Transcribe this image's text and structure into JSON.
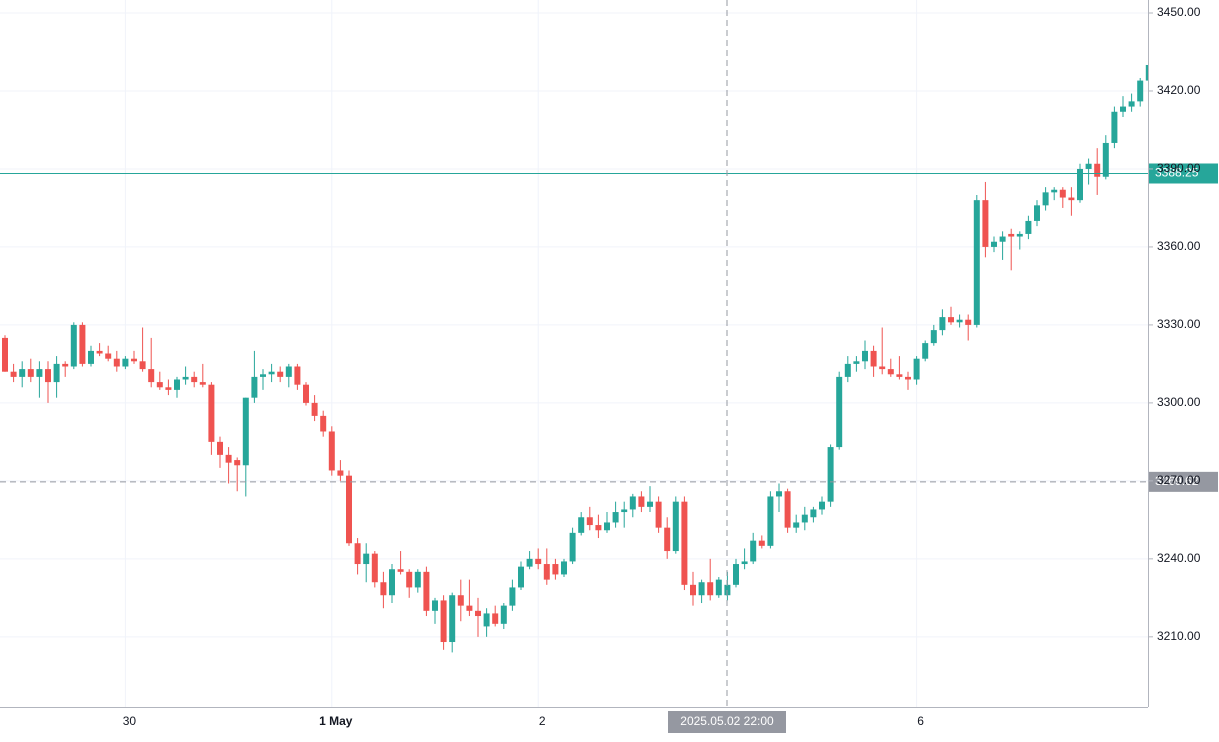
{
  "chart_data": {
    "type": "candlestick",
    "categories": [
      null,
      null,
      null,
      null,
      null,
      null,
      null,
      null,
      null,
      null,
      null,
      null,
      null,
      null,
      "30",
      null,
      null,
      null,
      null,
      null,
      null,
      null,
      null,
      null,
      null,
      null,
      null,
      null,
      null,
      null,
      null,
      null,
      null,
      null,
      null,
      null,
      null,
      null,
      "1 May",
      null,
      null,
      null,
      null,
      null,
      null,
      null,
      null,
      null,
      null,
      null,
      null,
      null,
      null,
      null,
      null,
      null,
      null,
      null,
      null,
      null,
      null,
      null,
      "2",
      null,
      null,
      null,
      null,
      null,
      null,
      null,
      null,
      null,
      null,
      null,
      null,
      null,
      null,
      null,
      null,
      null,
      null,
      null,
      null,
      null,
      null,
      null,
      null,
      null,
      null,
      null,
      null,
      null,
      null,
      null,
      null,
      null,
      null,
      null,
      null,
      null,
      null,
      null,
      null,
      null,
      null,
      null,
      "6",
      null,
      null,
      null,
      null,
      null,
      null,
      null,
      null,
      null,
      null,
      null,
      null,
      null,
      null,
      null,
      null,
      null,
      null,
      null,
      null,
      null,
      null,
      null
    ],
    "ohlc": [
      [
        3325,
        3326,
        3312,
        3312
      ],
      [
        3312,
        3315,
        3308,
        3310
      ],
      [
        3310,
        3316,
        3306,
        3313
      ],
      [
        3313,
        3317,
        3308,
        3310
      ],
      [
        3310,
        3316,
        3302,
        3313
      ],
      [
        3313,
        3316,
        3300,
        3308
      ],
      [
        3308,
        3318,
        3302,
        3315
      ],
      [
        3315,
        3316,
        3310,
        3314
      ],
      [
        3314,
        3331,
        3313,
        3330
      ],
      [
        3330,
        3331,
        3314,
        3315
      ],
      [
        3315,
        3322,
        3314,
        3320
      ],
      [
        3320,
        3323,
        3318,
        3319
      ],
      [
        3319,
        3322,
        3316,
        3317
      ],
      [
        3317,
        3320,
        3312,
        3314
      ],
      [
        3314,
        3318,
        3313,
        3317
      ],
      [
        3317,
        3320,
        3315,
        3316
      ],
      [
        3316,
        3329,
        3312,
        3313
      ],
      [
        3313,
        3325,
        3306,
        3308
      ],
      [
        3308,
        3312,
        3305,
        3306
      ],
      [
        3306,
        3309,
        3303,
        3305
      ],
      [
        3305,
        3310,
        3302,
        3309
      ],
      [
        3309,
        3314,
        3307,
        3310
      ],
      [
        3310,
        3312,
        3306,
        3308
      ],
      [
        3308,
        3315,
        3306,
        3307
      ],
      [
        3307,
        3308,
        3280,
        3285
      ],
      [
        3285,
        3287,
        3275,
        3280
      ],
      [
        3280,
        3283,
        3269,
        3277
      ],
      [
        3278,
        3279,
        3266,
        3276
      ],
      [
        3276,
        3302,
        3264,
        3302
      ],
      [
        3302,
        3320,
        3300,
        3310
      ],
      [
        3310,
        3313,
        3305,
        3311
      ],
      [
        3311,
        3315,
        3308,
        3312
      ],
      [
        3312,
        3314,
        3308,
        3310
      ],
      [
        3310,
        3315,
        3306,
        3314
      ],
      [
        3314,
        3315,
        3305,
        3307
      ],
      [
        3307,
        3308,
        3299,
        3300
      ],
      [
        3300,
        3303,
        3293,
        3295
      ],
      [
        3295,
        3297,
        3287,
        3289
      ],
      [
        3289,
        3291,
        3272,
        3274
      ],
      [
        3274,
        3278,
        3270,
        3272
      ],
      [
        3272,
        3274,
        3245,
        3246
      ],
      [
        3246,
        3248,
        3234,
        3238
      ],
      [
        3238,
        3246,
        3231,
        3242
      ],
      [
        3242,
        3243,
        3229,
        3231
      ],
      [
        3231,
        3235,
        3221,
        3226
      ],
      [
        3226,
        3238,
        3223,
        3236
      ],
      [
        3236,
        3243,
        3234,
        3235
      ],
      [
        3235,
        3236,
        3225,
        3229
      ],
      [
        3229,
        3236,
        3227,
        3235
      ],
      [
        3235,
        3237,
        3218,
        3220
      ],
      [
        3220,
        3225,
        3215,
        3224
      ],
      [
        3224,
        3226,
        3205,
        3208
      ],
      [
        3208,
        3227,
        3204,
        3226
      ],
      [
        3226,
        3232,
        3216,
        3222
      ],
      [
        3222,
        3232,
        3218,
        3220
      ],
      [
        3220,
        3225,
        3210,
        3218
      ],
      [
        3214,
        3221,
        3210,
        3219
      ],
      [
        3219,
        3222,
        3214,
        3215
      ],
      [
        3215,
        3223,
        3213,
        3222
      ],
      [
        3222,
        3232,
        3220,
        3229
      ],
      [
        3229,
        3239,
        3228,
        3237
      ],
      [
        3237,
        3243,
        3236,
        3240
      ],
      [
        3240,
        3244,
        3236,
        3238
      ],
      [
        3238,
        3244,
        3230,
        3232
      ],
      [
        3238,
        3240,
        3232,
        3234
      ],
      [
        3234,
        3240,
        3233,
        3239
      ],
      [
        3239,
        3252,
        3238,
        3250
      ],
      [
        3250,
        3258,
        3249,
        3256
      ],
      [
        3256,
        3260,
        3251,
        3253
      ],
      [
        3253,
        3257,
        3248,
        3251
      ],
      [
        3251,
        3258,
        3250,
        3254
      ],
      [
        3254,
        3262,
        3252,
        3258
      ],
      [
        3258,
        3262,
        3252,
        3259
      ],
      [
        3259,
        3265,
        3256,
        3264
      ],
      [
        3264,
        3266,
        3258,
        3260
      ],
      [
        3260,
        3268,
        3258,
        3262
      ],
      [
        3262,
        3264,
        3250,
        3252
      ],
      [
        3252,
        3256,
        3240,
        3243
      ],
      [
        3243,
        3264,
        3242,
        3262
      ],
      [
        3262,
        3264,
        3228,
        3230
      ],
      [
        3230,
        3235,
        3222,
        3226
      ],
      [
        3226,
        3232,
        3223,
        3231
      ],
      [
        3231,
        3240,
        3224,
        3226
      ],
      [
        3226,
        3233,
        3225,
        3232
      ],
      [
        3226,
        3235,
        3224,
        3230
      ],
      [
        3230,
        3240,
        3229,
        3238
      ],
      [
        3238,
        3244,
        3236,
        3239
      ],
      [
        3239,
        3250,
        3238,
        3247
      ],
      [
        3247,
        3249,
        3244,
        3245
      ],
      [
        3245,
        3266,
        3244,
        3264
      ],
      [
        3264,
        3269,
        3258,
        3266
      ],
      [
        3266,
        3267,
        3250,
        3252
      ],
      [
        3252,
        3257,
        3250,
        3254
      ],
      [
        3254,
        3260,
        3251,
        3257
      ],
      [
        3256,
        3260,
        3254,
        3259
      ],
      [
        3259,
        3264,
        3257,
        3262
      ],
      [
        3262,
        3284,
        3260,
        3283
      ],
      [
        3283,
        3312,
        3282,
        3310
      ],
      [
        3310,
        3318,
        3308,
        3315
      ],
      [
        3315,
        3318,
        3312,
        3316
      ],
      [
        3316,
        3324,
        3313,
        3320
      ],
      [
        3320,
        3322,
        3310,
        3314
      ],
      [
        3314,
        3329,
        3311,
        3313
      ],
      [
        3313,
        3317,
        3310,
        3311
      ],
      [
        3311,
        3318,
        3309,
        3310
      ],
      [
        3310,
        3312,
        3305,
        3309
      ],
      [
        3309,
        3318,
        3307,
        3317
      ],
      [
        3317,
        3324,
        3316,
        3323
      ],
      [
        3323,
        3330,
        3322,
        3328
      ],
      [
        3328,
        3336,
        3326,
        3333
      ],
      [
        3333,
        3337,
        3330,
        3331
      ],
      [
        3331,
        3334,
        3329,
        3332
      ],
      [
        3332,
        3334,
        3324,
        3330
      ],
      [
        3330,
        3380,
        3329,
        3378
      ],
      [
        3378,
        3385,
        3356,
        3360
      ],
      [
        3360,
        3364,
        3358,
        3362
      ],
      [
        3362,
        3366,
        3355,
        3364
      ],
      [
        3365,
        3367,
        3351,
        3364
      ],
      [
        3364,
        3366,
        3359,
        3365
      ],
      [
        3365,
        3372,
        3363,
        3370
      ],
      [
        3370,
        3378,
        3368,
        3376
      ],
      [
        3376,
        3383,
        3374,
        3381
      ],
      [
        3381,
        3383,
        3378,
        3382
      ],
      [
        3382,
        3383,
        3375,
        3379
      ],
      [
        3379,
        3383,
        3372,
        3378
      ],
      [
        3378,
        3392,
        3377,
        3390
      ],
      [
        3390,
        3394,
        3384,
        3392
      ],
      [
        3392,
        3398,
        3380,
        3387
      ],
      [
        3387,
        3403,
        3386,
        3400
      ],
      [
        3400,
        3414,
        3398,
        3412
      ],
      [
        3412,
        3418,
        3410,
        3414
      ],
      [
        3414,
        3419,
        3412,
        3416
      ],
      [
        3416,
        3425,
        3414,
        3424
      ],
      [
        3424,
        3433,
        3423,
        3430
      ]
    ],
    "up_color": "#26a69a",
    "down_color": "#ef5350",
    "ylim": [
      3183,
      3455
    ],
    "yticks": [
      {
        "value": 3210,
        "label": "3210.00"
      },
      {
        "value": 3240,
        "label": "3240.00"
      },
      {
        "value": 3270,
        "label": "3270.00"
      },
      {
        "value": 3300,
        "label": "3300.00"
      },
      {
        "value": 3330,
        "label": "3330.00"
      },
      {
        "value": 3360,
        "label": "3360.00"
      },
      {
        "value": 3390,
        "label": "3390.00"
      },
      {
        "value": 3420,
        "label": "3420.00"
      },
      {
        "value": 3450,
        "label": "3450.00"
      }
    ],
    "last_price": 3388.25,
    "crosshair_price": 3269.62,
    "crosshair_time": "2025.05.02 22:00",
    "grid": true
  }
}
